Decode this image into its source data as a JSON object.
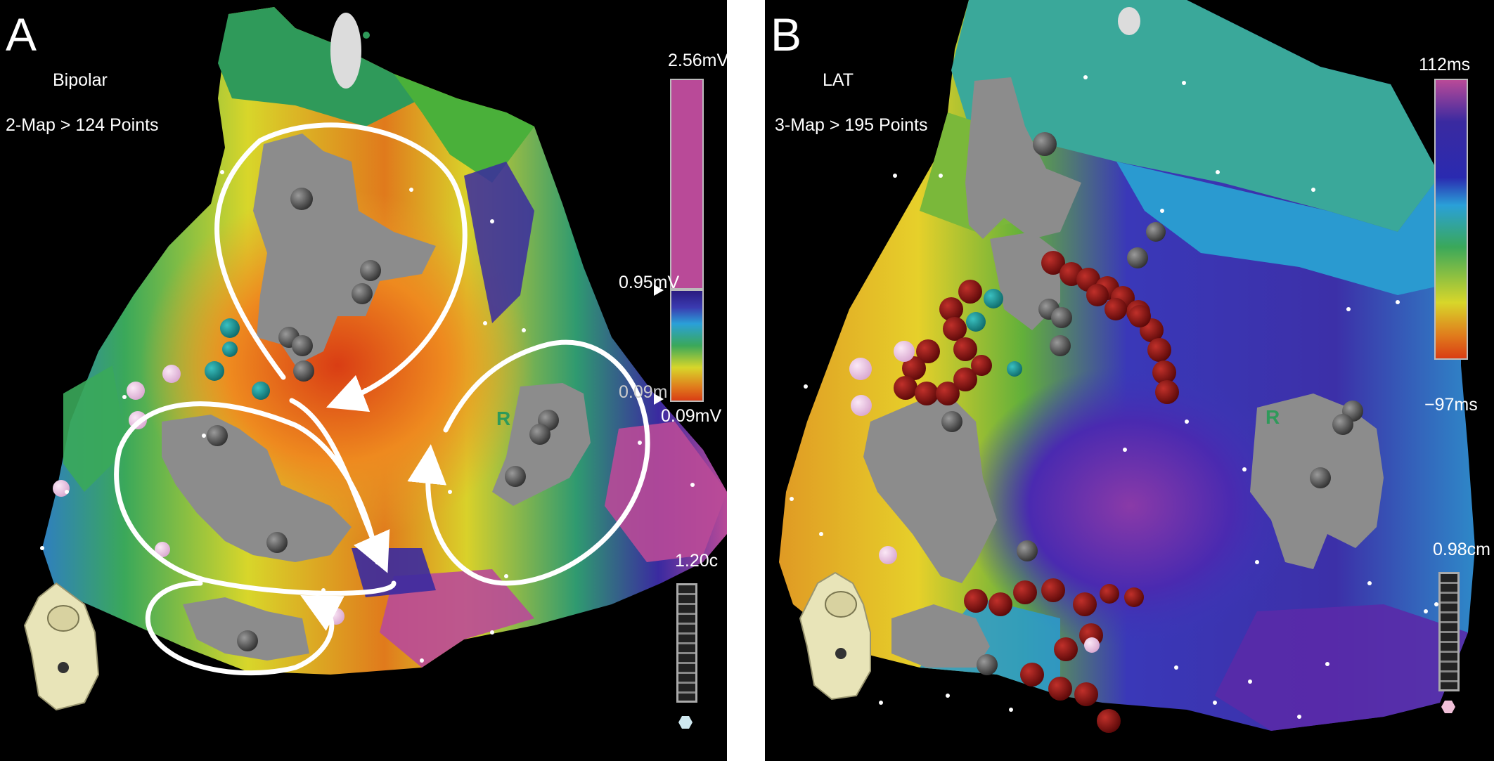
{
  "panel_a": {
    "letter": "A",
    "map_type": "Bipolar",
    "map_info": "2-Map > 124 Points",
    "colorbar": {
      "max_label": "2.56mV",
      "upper_threshold_label": "0.95mV",
      "overlap_label": "0.09m",
      "min_label": "0.09mV",
      "above_range_color": "#b94a98"
    },
    "scale_label": "1.20c",
    "marker_label": "R"
  },
  "panel_b": {
    "letter": "B",
    "map_type": "LAT",
    "map_info": "3-Map > 195 Points",
    "colorbar": {
      "max_label": "112ms",
      "min_label": "−97ms"
    },
    "scale_label": "0.98cm",
    "marker_label": "R"
  }
}
